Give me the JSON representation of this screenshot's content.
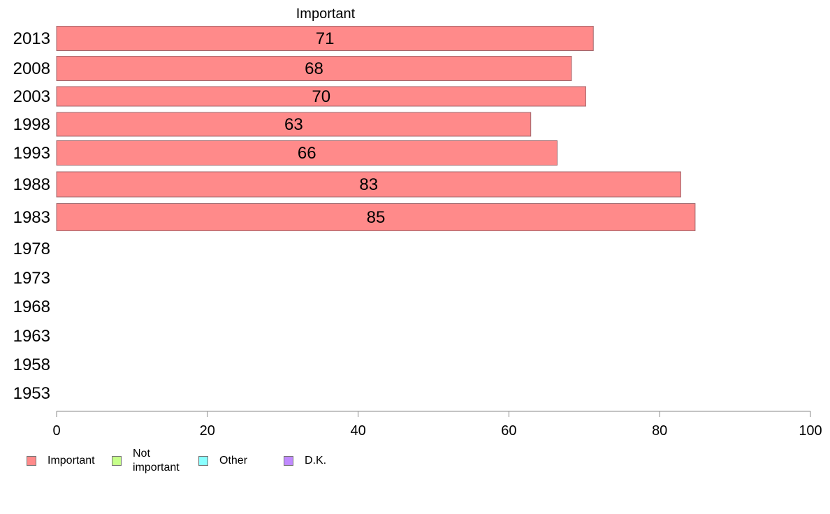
{
  "chart_data": {
    "type": "bar",
    "orientation": "horizontal",
    "header_label": "Important",
    "categories": [
      "2013",
      "2008",
      "2003",
      "1998",
      "1993",
      "1988",
      "1983",
      "1978",
      "1973",
      "1968",
      "1963",
      "1958",
      "1953"
    ],
    "series": [
      {
        "name": "Important",
        "values": [
          71.2,
          68.3,
          70.2,
          62.9,
          66.4,
          82.8,
          84.7,
          null,
          null,
          null,
          null,
          null,
          null
        ],
        "labels": [
          "71",
          "68",
          "70",
          "63",
          "66",
          "83",
          "85",
          "",
          "",
          "",
          "",
          "",
          ""
        ]
      }
    ],
    "xlim": [
      0,
      100
    ],
    "xticks": [
      "0",
      "20",
      "40",
      "60",
      "80",
      "100"
    ],
    "grid": false
  },
  "legend": {
    "items": [
      {
        "label_lines": [
          "Important"
        ],
        "color": "#ff8a8a"
      },
      {
        "label_lines": [
          "Not",
          "important"
        ],
        "color": "#c6ff8a"
      },
      {
        "label_lines": [
          "Other"
        ],
        "color": "#8affff"
      },
      {
        "label_lines": [
          "D.K."
        ],
        "color": "#c08aff"
      }
    ]
  },
  "colors": {
    "bar_fill": "#ff8a8a",
    "bar_stroke": "#a0676c",
    "axis": "#888888"
  }
}
